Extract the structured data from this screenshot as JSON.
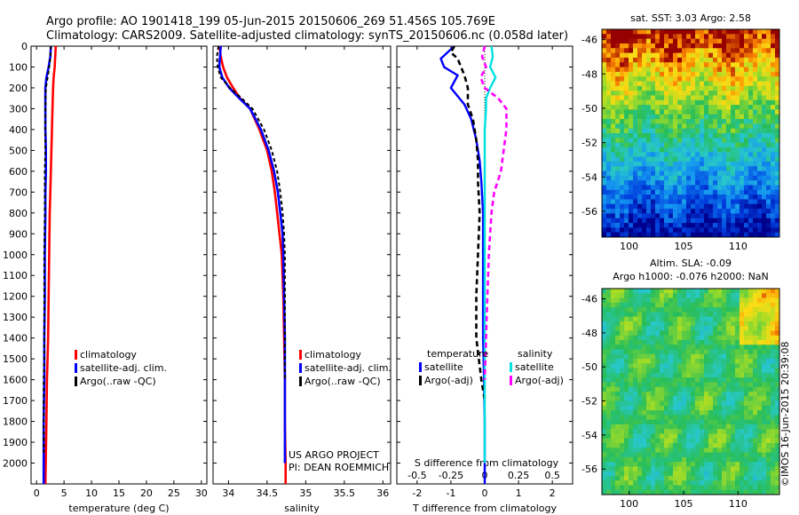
{
  "header": {
    "line1": "Argo profile: AO 1901418_199 05-Jun-2015 20150606_269 51.456S 105.769E",
    "line2": "Climatology: CARS2009. Satellite-adjusted climatology: synTS_20150606.nc (0.058d later)"
  },
  "credits": {
    "project": "US ARGO PROJECT",
    "pi": "PI: DEAN ROEMMICH",
    "stamp": "©IMOS 16-Jun-2015 20:39:08"
  },
  "colors": {
    "climatology": "#ff0000",
    "satellite": "#0000ff",
    "argo": "#000000",
    "sal_satellite": "#00e0e0",
    "sal_argo": "#ff00ff"
  },
  "depth_ticks": [
    0,
    100,
    200,
    300,
    400,
    500,
    600,
    700,
    800,
    900,
    1000,
    1100,
    1200,
    1300,
    1400,
    1500,
    1600,
    1700,
    1800,
    1900,
    2000
  ],
  "panels": {
    "temperature": {
      "xlabel": "temperature (deg C)",
      "xticks": [
        "0",
        "5",
        "10",
        "15",
        "20",
        "25",
        "30"
      ],
      "legend": [
        "climatology",
        "satellite-adj. clim.",
        "Argo(..raw -QC)"
      ]
    },
    "salinity": {
      "xlabel": "salinity",
      "xticks": [
        "34",
        "34.5",
        "35",
        "35.5",
        "36"
      ],
      "legend": [
        "climatology",
        "satellite-adj. clim.",
        "Argo(..raw -QC)"
      ]
    },
    "difference": {
      "xlabel": "T difference from climatology",
      "xticks": [
        "-2",
        "-1",
        "0",
        "1",
        "2"
      ],
      "top_label": "S difference from climatology",
      "top_ticks": [
        "-0.5",
        "-0.25",
        "0",
        "0.25",
        "0.5"
      ],
      "legend_t_title": "temperature",
      "legend_s_title": "salinity",
      "legend_t": [
        "satellite",
        "Argo(-adj)"
      ],
      "legend_s": [
        "satellite",
        "Argo(-adj)"
      ]
    }
  },
  "maps": {
    "sst": {
      "title": "sat. SST: 3.03 Argo: 2.58",
      "xticks": [
        "100",
        "105",
        "110"
      ],
      "yticks": [
        "-46",
        "-48",
        "-50",
        "-52",
        "-54",
        "-56"
      ]
    },
    "sla": {
      "title1": "Altim. SLA: -0.09",
      "title2": "Argo h1000: -0.076 h2000: NaN",
      "xticks": [
        "100",
        "105",
        "110"
      ],
      "yticks": [
        "-46",
        "-48",
        "-50",
        "-52",
        "-54",
        "-56"
      ]
    }
  },
  "chart_data": [
    {
      "type": "line",
      "title": "",
      "xlabel": "temperature (deg C)",
      "ylabel": "",
      "xlim": [
        -1,
        31
      ],
      "ylim": [
        2100,
        0
      ],
      "series": [
        {
          "name": "climatology",
          "x": [
            3.5,
            3.4,
            3.3,
            3.1,
            3.0,
            2.9,
            2.8,
            2.7,
            2.6,
            2.5,
            2.4,
            2.3,
            2.2,
            2.1,
            2.0,
            1.9,
            1.8,
            1.7,
            1.6
          ],
          "y": [
            0,
            50,
            100,
            150,
            200,
            300,
            400,
            500,
            600,
            700,
            800,
            1000,
            1200,
            1400,
            1500,
            1600,
            1800,
            1950,
            2100
          ]
        },
        {
          "name": "satellite-adj. clim.",
          "x": [
            2.6,
            2.5,
            2.2,
            1.8,
            1.6,
            1.6,
            1.6,
            1.7,
            1.7,
            1.6,
            1.6,
            1.5,
            1.5,
            1.4,
            1.4,
            1.4,
            1.3,
            1.3,
            1.3
          ],
          "y": [
            0,
            50,
            100,
            150,
            200,
            300,
            400,
            500,
            600,
            700,
            800,
            1000,
            1200,
            1400,
            1500,
            1600,
            1800,
            1950,
            2100
          ]
        },
        {
          "name": "Argo(..raw -QC)",
          "x": [
            2.6,
            2.5,
            2.3,
            2.0,
            1.7,
            1.6,
            1.6,
            1.6,
            1.5,
            1.5,
            1.5,
            1.4,
            1.4,
            1.4,
            1.4,
            1.3,
            1.3,
            1.3
          ],
          "y": [
            0,
            50,
            100,
            150,
            200,
            300,
            400,
            500,
            600,
            700,
            800,
            1000,
            1200,
            1400,
            1500,
            1600,
            1800,
            1950
          ]
        }
      ]
    },
    {
      "type": "line",
      "title": "",
      "xlabel": "salinity",
      "ylabel": "",
      "xlim": [
        33.8,
        36.1
      ],
      "ylim": [
        2100,
        0
      ],
      "series": [
        {
          "name": "climatology",
          "x": [
            33.88,
            33.9,
            33.93,
            33.98,
            34.06,
            34.15,
            34.28,
            34.4,
            34.5,
            34.56,
            34.6,
            34.63,
            34.66,
            34.69,
            34.71,
            34.72,
            34.73,
            34.73,
            34.74,
            34.74
          ],
          "y": [
            0,
            50,
            100,
            150,
            200,
            250,
            300,
            400,
            500,
            600,
            700,
            800,
            900,
            1000,
            1200,
            1400,
            1600,
            1800,
            2000,
            2100
          ]
        },
        {
          "name": "satellite-adj. clim.",
          "x": [
            33.9,
            33.89,
            33.88,
            33.92,
            34.01,
            34.14,
            34.28,
            34.42,
            34.52,
            34.59,
            34.64,
            34.67,
            34.7,
            34.71,
            34.72,
            34.73,
            34.73,
            34.73,
            34.73
          ],
          "y": [
            0,
            50,
            100,
            150,
            200,
            250,
            300,
            400,
            500,
            600,
            700,
            800,
            900,
            1000,
            1200,
            1400,
            1600,
            1800,
            2000
          ]
        },
        {
          "name": "Argo(..raw -QC)",
          "x": [
            33.87,
            33.85,
            33.86,
            33.9,
            34.02,
            34.17,
            34.31,
            34.46,
            34.56,
            34.63,
            34.67,
            34.7,
            34.72,
            34.73,
            34.73,
            34.73,
            34.73
          ],
          "y": [
            0,
            50,
            100,
            150,
            200,
            250,
            300,
            400,
            500,
            600,
            700,
            800,
            900,
            1000,
            1200,
            1400,
            1600
          ]
        }
      ]
    },
    {
      "type": "line",
      "title": "",
      "xlabel": "T difference from climatology",
      "x2label": "S difference from climatology",
      "ylabel": "",
      "xlim": [
        -2.6,
        2.6
      ],
      "x2lim": [
        -0.65,
        0.65
      ],
      "ylim": [
        2100,
        0
      ],
      "series": [
        {
          "name": "temperature satellite",
          "axis": "T",
          "x": [
            -0.9,
            -1.1,
            -1.3,
            -1.2,
            -0.8,
            -1.0,
            -0.6,
            -0.4,
            -0.25,
            -0.15,
            -0.1,
            -0.05,
            -0.05,
            -0.05,
            -0.05,
            -0.02,
            0,
            0,
            0
          ],
          "y": [
            0,
            30,
            60,
            100,
            140,
            200,
            280,
            350,
            450,
            550,
            650,
            800,
            1000,
            1200,
            1400,
            1600,
            1800,
            2000,
            2100
          ]
        },
        {
          "name": "temperature Argo(-adj)",
          "axis": "T",
          "x": [
            -0.9,
            -1.0,
            -0.8,
            -0.7,
            -0.6,
            -0.5,
            -0.5,
            -0.35,
            -0.25,
            -0.2,
            -0.2,
            -0.15,
            -0.2,
            -0.25,
            -0.25,
            -0.1,
            0
          ],
          "y": [
            0,
            30,
            60,
            100,
            140,
            200,
            280,
            350,
            450,
            550,
            650,
            800,
            1000,
            1200,
            1400,
            1600,
            1700
          ]
        },
        {
          "name": "salinity satellite",
          "axis": "S",
          "x": [
            0.05,
            0.06,
            0.04,
            0.08,
            0.04,
            0.01,
            0.01,
            0.0,
            0.0,
            0.0,
            0.0,
            0.0,
            0.0,
            0.0,
            0.0,
            0.0
          ],
          "y": [
            0,
            50,
            100,
            150,
            200,
            250,
            300,
            400,
            600,
            800,
            1000,
            1200,
            1400,
            1600,
            1800,
            2000
          ]
        },
        {
          "name": "salinity Argo(-adj)",
          "axis": "S",
          "x": [
            0.0,
            -0.02,
            0.01,
            -0.03,
            0.0,
            0.1,
            0.16,
            0.16,
            0.14,
            0.12,
            0.07,
            0.05,
            0.03,
            0.02,
            0.01,
            0.0
          ],
          "y": [
            0,
            50,
            100,
            150,
            200,
            250,
            300,
            400,
            500,
            600,
            700,
            800,
            1000,
            1200,
            1400,
            1600
          ]
        }
      ]
    }
  ]
}
